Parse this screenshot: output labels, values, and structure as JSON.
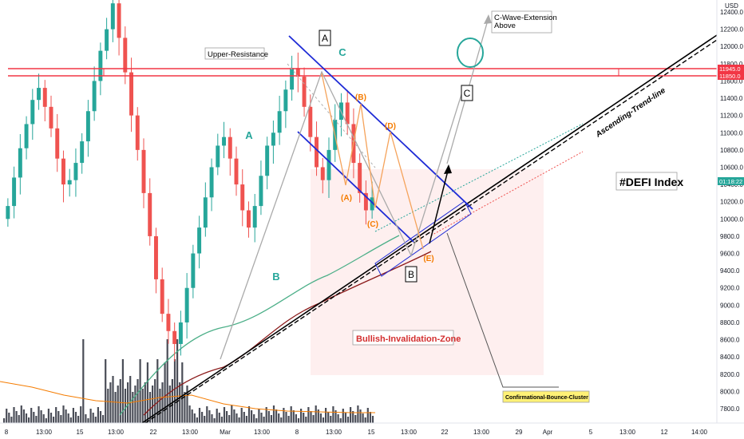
{
  "chart_data": {
    "type": "candlestick",
    "symbol": "#DEFI Index",
    "currency": "USD",
    "y_axis": {
      "ticks": [
        7800,
        8000,
        8200,
        8400,
        8600,
        8800,
        9000,
        9200,
        9400,
        9600,
        9800,
        10000,
        10200,
        10400,
        10600,
        10800,
        11000,
        11200,
        11400,
        11600,
        11800,
        12000,
        12200,
        12400
      ],
      "tick_labels": [
        "7800.0",
        "8000.0",
        "8200.0",
        "8400.0",
        "8600.0",
        "8800.0",
        "9000.0",
        "9200.0",
        "9400.0",
        "9600.0",
        "9800.0",
        "10000.0",
        "10200.0",
        "10400.0",
        "10600.0",
        "10800.0",
        "11000.0",
        "11200.0",
        "11400.0",
        "11600.0",
        "11800.0",
        "12000.0",
        "12200.0",
        "12400.0"
      ],
      "range": [
        7550,
        12650
      ]
    },
    "x_axis": {
      "tick_labels": [
        "8",
        "13:00",
        "15",
        "13:00",
        "22",
        "13:00",
        "Mar",
        "13:00",
        "8",
        "13:00",
        "15",
        "13:00",
        "22",
        "13:00",
        "29",
        "Apr",
        "5",
        "13:00",
        "12",
        "14:00"
      ]
    },
    "price_labels": [
      {
        "name": "top-resistance",
        "value": 11945.0,
        "text": "11945.0",
        "color": "#f23645"
      },
      {
        "name": "bottom-resistance",
        "value": 11850.0,
        "text": "11850.0",
        "color": "#f23645"
      },
      {
        "name": "last-price",
        "value": 10540,
        "text": "01:18:22",
        "color": "#26a69a"
      }
    ],
    "series_ohlc_close": [
      10150,
      10480,
      10820,
      11100,
      11380,
      11520,
      11300,
      11050,
      10700,
      10400,
      10450,
      10650,
      10900,
      11250,
      11600,
      11950,
      12200,
      12500,
      12100,
      11700,
      11200,
      10800,
      10300,
      9800,
      9300,
      8900,
      8700,
      8550,
      8800,
      9200,
      9600,
      9900,
      10250,
      10600,
      10850,
      10950,
      10700,
      10400,
      10100,
      9900,
      10150,
      10500,
      10850,
      11000,
      11250,
      11500,
      11750,
      11650,
      11300,
      10950,
      10600,
      10450,
      10800,
      11150,
      11350,
      11100,
      10650,
      10300,
      10100,
      10250
    ],
    "annotations": [
      {
        "name": "upper-resistance",
        "text": "Upper-Resistance"
      },
      {
        "name": "c-wave-extension",
        "text": "C-Wave-Extension Above"
      },
      {
        "name": "defi-index",
        "text": "#DEFI Index"
      },
      {
        "name": "ascending-trend-line",
        "text": "Ascending-Trend-line"
      },
      {
        "name": "bullish-invalidation-zone",
        "text": "Bullish-Invalidation-Zone"
      },
      {
        "name": "confirmational-bounce-cluster",
        "text": "Confirmational-Bounce-Cluster"
      }
    ],
    "wave_labels": [
      {
        "name": "wave-A-boxed",
        "text": "A",
        "color": "#000000",
        "boxed": true
      },
      {
        "name": "wave-C-teal",
        "text": "C",
        "color": "#26a69a"
      },
      {
        "name": "wave-A-teal",
        "text": "A",
        "color": "#26a69a"
      },
      {
        "name": "wave-B-teal",
        "text": "B",
        "color": "#26a69a"
      },
      {
        "name": "wave-B-sub",
        "text": "(B)",
        "color": "#f57c00"
      },
      {
        "name": "wave-A-sub",
        "text": "(A)",
        "color": "#f57c00"
      },
      {
        "name": "wave-D-sub",
        "text": "(D)",
        "color": "#f57c00"
      },
      {
        "name": "wave-C-sub",
        "text": "(C)",
        "color": "#f57c00"
      },
      {
        "name": "wave-E-sub",
        "text": "(E)",
        "color": "#f57c00"
      },
      {
        "name": "wave-B-boxed",
        "text": "B",
        "color": "#000000",
        "boxed": true
      },
      {
        "name": "wave-C-boxed",
        "text": "C",
        "color": "#000000",
        "boxed": true
      }
    ],
    "colors": {
      "up": "#26a69a",
      "down": "#ef5350",
      "resistance": "#f23645",
      "channel": "#1e2bd6",
      "ma_green": "#4caf88",
      "ma_dark": "#8b1a1a"
    }
  }
}
